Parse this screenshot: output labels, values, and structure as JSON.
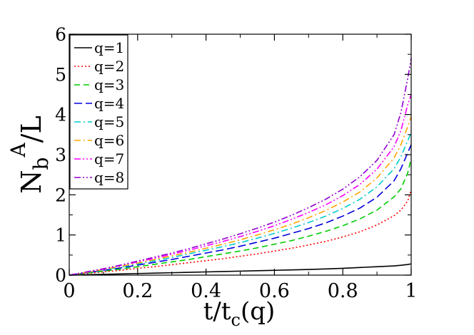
{
  "chart_data": {
    "type": "line",
    "title": "",
    "xlabel": {
      "main": "t/t",
      "sub": "c",
      "tail": "(q)"
    },
    "ylabel": {
      "main": "N",
      "sub": "b",
      "sup": "A",
      "tail": "/L"
    },
    "xlim": [
      0,
      1
    ],
    "ylim": [
      0,
      6
    ],
    "xticks": [
      0,
      0.2,
      0.4,
      0.6,
      0.8,
      1
    ],
    "xtick_labels": [
      "0",
      "0.2",
      "0.4",
      "0.6",
      "0.8",
      "1"
    ],
    "yticks": [
      0,
      1,
      2,
      3,
      4,
      5,
      6
    ],
    "ytick_labels": [
      "0",
      "1",
      "2",
      "3",
      "4",
      "5",
      "6"
    ],
    "grid": false,
    "legend_position": "top-left",
    "x": [
      0,
      0.05,
      0.1,
      0.15,
      0.2,
      0.25,
      0.3,
      0.35,
      0.4,
      0.45,
      0.5,
      0.55,
      0.6,
      0.65,
      0.7,
      0.75,
      0.8,
      0.85,
      0.9,
      0.95,
      0.97,
      0.99,
      1.0
    ],
    "series": [
      {
        "name": "q=1",
        "color": "#000000",
        "dash": "solid",
        "values": [
          0,
          0.01,
          0.02,
          0.03,
          0.04,
          0.05,
          0.06,
          0.07,
          0.08,
          0.09,
          0.1,
          0.11,
          0.12,
          0.13,
          0.14,
          0.155,
          0.17,
          0.19,
          0.21,
          0.23,
          0.245,
          0.265,
          0.28
        ]
      },
      {
        "name": "q=2",
        "color": "#ff0000",
        "dash": "dotted",
        "values": [
          0,
          0.04,
          0.08,
          0.12,
          0.17,
          0.21,
          0.26,
          0.31,
          0.36,
          0.41,
          0.47,
          0.53,
          0.6,
          0.67,
          0.75,
          0.84,
          0.95,
          1.08,
          1.25,
          1.48,
          1.62,
          1.85,
          2.12
        ]
      },
      {
        "name": "q=3",
        "color": "#00cc00",
        "dash": "dashed",
        "values": [
          0,
          0.05,
          0.1,
          0.15,
          0.21,
          0.27,
          0.33,
          0.39,
          0.46,
          0.53,
          0.6,
          0.68,
          0.77,
          0.86,
          0.97,
          1.09,
          1.23,
          1.4,
          1.62,
          1.95,
          2.15,
          2.55,
          2.9
        ]
      },
      {
        "name": "q=4",
        "color": "#0000dd",
        "dash": "longdash",
        "values": [
          0,
          0.06,
          0.12,
          0.18,
          0.25,
          0.32,
          0.39,
          0.47,
          0.55,
          0.63,
          0.72,
          0.82,
          0.92,
          1.04,
          1.16,
          1.3,
          1.47,
          1.67,
          1.94,
          2.35,
          2.65,
          3.05,
          3.25
        ]
      },
      {
        "name": "q=5",
        "color": "#00cccc",
        "dash": "dashdot",
        "values": [
          0,
          0.065,
          0.13,
          0.2,
          0.28,
          0.36,
          0.44,
          0.53,
          0.62,
          0.71,
          0.81,
          0.92,
          1.04,
          1.17,
          1.31,
          1.47,
          1.66,
          1.89,
          2.2,
          2.65,
          2.95,
          3.35,
          3.55
        ]
      },
      {
        "name": "q=6",
        "color": "#ffa500",
        "dash": "dashdot",
        "values": [
          0,
          0.07,
          0.14,
          0.22,
          0.3,
          0.39,
          0.48,
          0.57,
          0.67,
          0.77,
          0.88,
          1.0,
          1.13,
          1.27,
          1.43,
          1.61,
          1.82,
          2.07,
          2.42,
          2.92,
          3.25,
          3.7,
          3.95
        ]
      },
      {
        "name": "q=7",
        "color": "#ff00ff",
        "dash": "dashdotdot",
        "values": [
          0,
          0.075,
          0.15,
          0.24,
          0.33,
          0.42,
          0.52,
          0.62,
          0.73,
          0.84,
          0.96,
          1.09,
          1.23,
          1.39,
          1.56,
          1.75,
          1.98,
          2.26,
          2.64,
          3.2,
          3.6,
          4.25,
          4.5
        ]
      },
      {
        "name": "q=8",
        "color": "#9400d3",
        "dash": "dashdotdot",
        "values": [
          0,
          0.08,
          0.16,
          0.25,
          0.35,
          0.45,
          0.55,
          0.66,
          0.78,
          0.9,
          1.03,
          1.17,
          1.32,
          1.49,
          1.68,
          1.89,
          2.14,
          2.45,
          2.86,
          3.5,
          4.05,
          4.9,
          5.4
        ]
      }
    ]
  }
}
